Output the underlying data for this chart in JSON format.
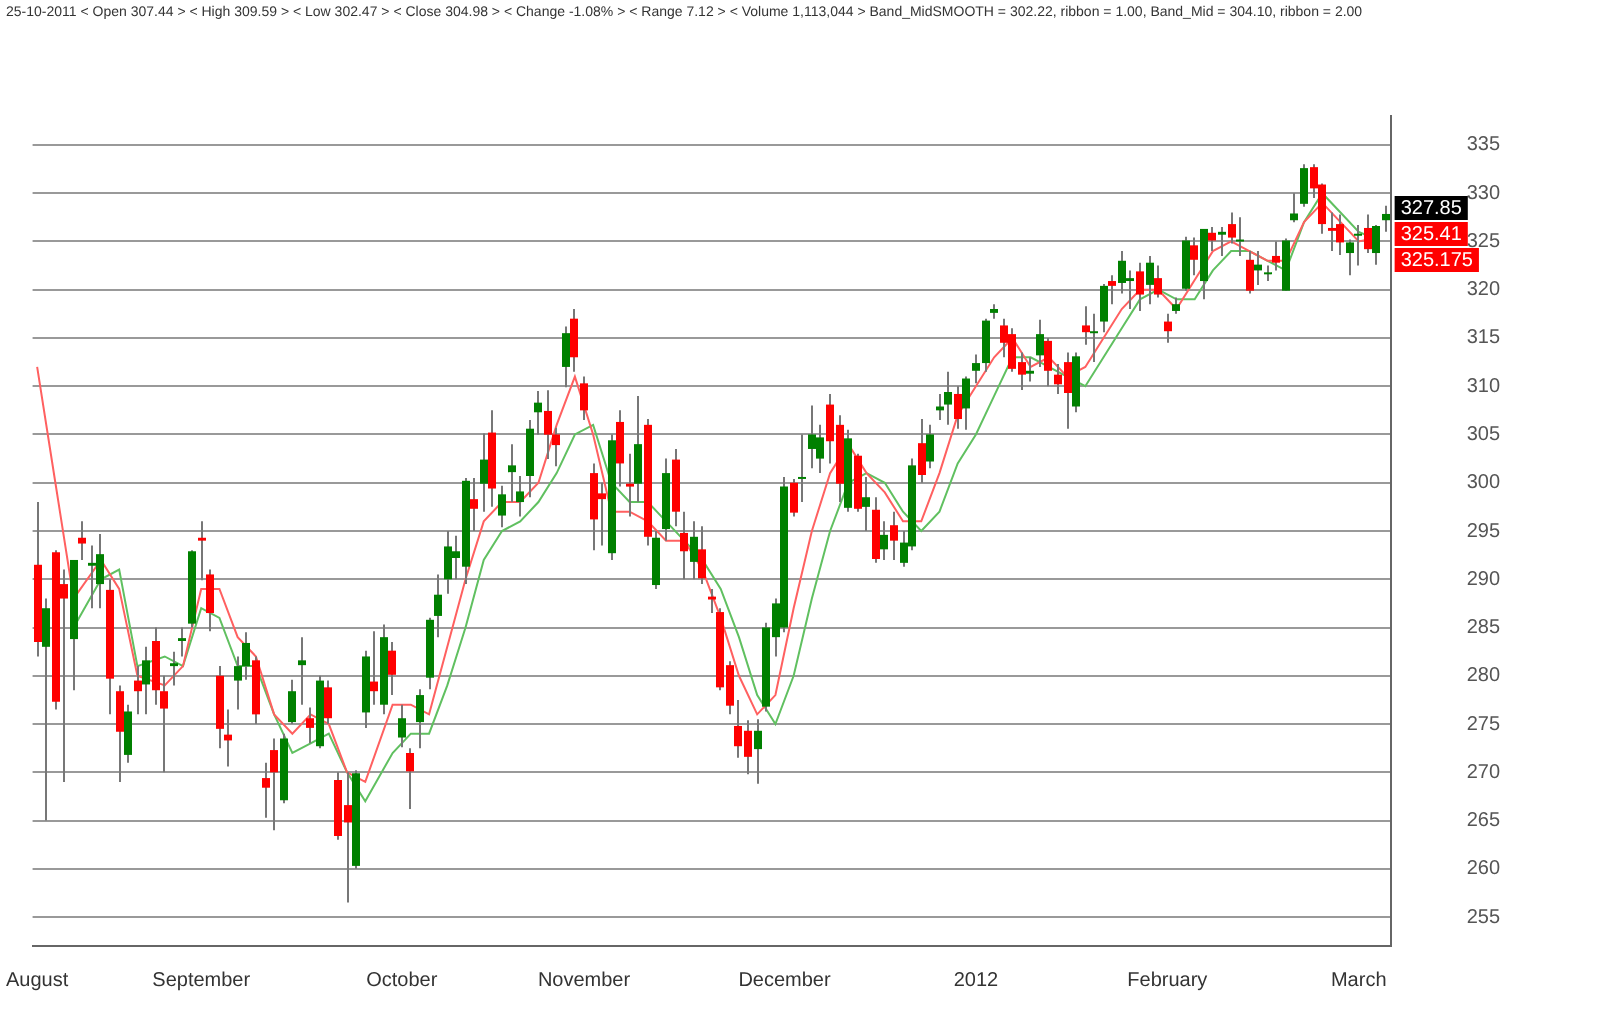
{
  "chart_data": {
    "type": "candlestick",
    "title": "25-10-2011 < Open 307.44 > < High 309.59 > < Low 302.47 > < Close 304.98 > < Change -1.08% > < Range 7.12 > < Volume 1,113,044 > Band_MidSMOOTH = 302.22, ribbon = 1.00, Band_Mid = 304.10, ribbon = 2.00",
    "categories": [
      "August",
      null,
      null,
      null,
      null,
      null,
      null,
      null,
      null,
      null,
      null,
      null,
      null,
      null,
      null,
      null,
      null,
      null,
      "September",
      null,
      null,
      null,
      null,
      null,
      null,
      null,
      null,
      null,
      null,
      null,
      null,
      null,
      null,
      null,
      null,
      null,
      null,
      null,
      null,
      null,
      "October",
      null,
      null,
      null,
      null,
      null,
      null,
      null,
      null,
      null,
      null,
      null,
      null,
      null,
      null,
      null,
      null,
      null,
      null,
      null,
      "November",
      null,
      null,
      null,
      null,
      null,
      null,
      null,
      null,
      null,
      null,
      null,
      null,
      null,
      null,
      null,
      null,
      null,
      null,
      null,
      null,
      null,
      "December",
      null,
      null,
      null,
      null,
      null,
      null,
      null,
      null,
      null,
      null,
      null,
      null,
      null,
      null,
      null,
      null,
      null,
      null,
      null,
      null,
      "2012",
      null,
      null,
      null,
      null,
      null,
      null,
      null,
      null,
      null,
      null,
      null,
      null,
      null,
      null,
      null,
      null,
      null,
      null,
      null,
      null,
      "February",
      null,
      null,
      null,
      null,
      null,
      null,
      null,
      null,
      null,
      null,
      null,
      null,
      null,
      null,
      null,
      null,
      null,
      null,
      null,
      null,
      "March",
      null,
      null,
      null
    ],
    "ohlc": [
      [
        291.5,
        298,
        282,
        283.5
      ],
      [
        283,
        288,
        265,
        287
      ],
      [
        292.8,
        293,
        276.5,
        277.3
      ],
      [
        289.5,
        291,
        269,
        288
      ],
      [
        283.8,
        292,
        278.5,
        292
      ],
      [
        294.3,
        296,
        292,
        293.7
      ],
      [
        291.4,
        293.5,
        287,
        291.7
      ],
      [
        289.5,
        294.7,
        287,
        292.6
      ],
      [
        288.9,
        290,
        276,
        279.7
      ],
      [
        278.4,
        279,
        269,
        274.2
      ],
      [
        271.8,
        277,
        271,
        276.3
      ],
      [
        279.5,
        281,
        276,
        278.4
      ],
      [
        279.1,
        283,
        276,
        281.6
      ],
      [
        283.6,
        285,
        277,
        278.5
      ],
      [
        278.4,
        280,
        270,
        276.6
      ],
      [
        281,
        282.5,
        279,
        281.3
      ],
      [
        283.6,
        285,
        282,
        283.9
      ],
      [
        285.4,
        293,
        285,
        292.9
      ],
      [
        294.3,
        296,
        289.9,
        294
      ],
      [
        290.5,
        291,
        284.6,
        286.5
      ],
      [
        280,
        281,
        272.5,
        274.5
      ],
      [
        273.9,
        276.5,
        270.6,
        273.3
      ],
      [
        279.5,
        282,
        276.5,
        281
      ],
      [
        281,
        284.5,
        279.6,
        283.4
      ],
      [
        281.6,
        282,
        275,
        276
      ],
      [
        269.4,
        271,
        265.3,
        268.4
      ],
      [
        272.3,
        273.5,
        264,
        270
      ],
      [
        267.1,
        274,
        266.8,
        273.5
      ],
      [
        275.2,
        279.6,
        275,
        278.4
      ],
      [
        281.1,
        284,
        277,
        281.6
      ],
      [
        275.6,
        276.7,
        273,
        274.6
      ],
      [
        272.7,
        280,
        272.5,
        279.5
      ],
      [
        278.8,
        279.5,
        275,
        275.6
      ],
      [
        269.2,
        270,
        263,
        263.4
      ],
      [
        266.6,
        270,
        256.5,
        264.8
      ],
      [
        260.3,
        270.2,
        260,
        269.9
      ],
      [
        276.2,
        282.6,
        274.6,
        282
      ],
      [
        279.4,
        284.6,
        277,
        278.4
      ],
      [
        277,
        285.3,
        276,
        284
      ],
      [
        282.6,
        283.5,
        278,
        280.1
      ],
      [
        273.6,
        277,
        272.6,
        275.6
      ],
      [
        272,
        272.5,
        266.2,
        270.1
      ],
      [
        275.2,
        278.6,
        272.5,
        278
      ],
      [
        279.8,
        286,
        278.6,
        285.8
      ],
      [
        286.2,
        290.5,
        284,
        288.4
      ],
      [
        290,
        295,
        288.5,
        293.4
      ],
      [
        292.2,
        294.5,
        290,
        292.9
      ],
      [
        291.3,
        300.5,
        289.5,
        300.2
      ],
      [
        298.3,
        300.5,
        295,
        297.3
      ],
      [
        299.9,
        305.1,
        297,
        302.4
      ],
      [
        305.2,
        307.5,
        297.5,
        299.4
      ],
      [
        296.6,
        299.7,
        295.4,
        298.8
      ],
      [
        301.1,
        304,
        298,
        301.8
      ],
      [
        298,
        300.7,
        296.5,
        299.1
      ],
      [
        300.7,
        306.5,
        298.5,
        305.6
      ],
      [
        307.3,
        309.5,
        305,
        308.3
      ],
      [
        307.44,
        309.59,
        302.47,
        304.98
      ],
      [
        305,
        305.7,
        301.7,
        303.9
      ],
      [
        312,
        316.2,
        309.9,
        315.5
      ],
      [
        317,
        318,
        311.5,
        313
      ],
      [
        310.3,
        311,
        306.5,
        307.5
      ],
      [
        301,
        302,
        293,
        296.2
      ],
      [
        298.9,
        300,
        293.5,
        298.3
      ],
      [
        292.7,
        305,
        292,
        304.4
      ],
      [
        306.3,
        307.5,
        299.6,
        302
      ],
      [
        299.9,
        303,
        296.5,
        299.6
      ],
      [
        299.9,
        309,
        298,
        304
      ],
      [
        306,
        306.6,
        293.5,
        294.4
      ],
      [
        289.4,
        295,
        289,
        294.3
      ],
      [
        295.2,
        302.5,
        294,
        301
      ],
      [
        302.4,
        303.5,
        295.5,
        297
      ],
      [
        294.8,
        297,
        290,
        292.9
      ],
      [
        291.8,
        296,
        290,
        294.4
      ],
      [
        293.1,
        295.5,
        289.5,
        290.1
      ],
      [
        288.2,
        289,
        286.5,
        287.9
      ],
      [
        286.6,
        287,
        278.5,
        278.8
      ],
      [
        281.1,
        281.5,
        276,
        276.9
      ],
      [
        274.8,
        277.5,
        271.5,
        272.7
      ],
      [
        274.3,
        275.4,
        269.8,
        271.6
      ],
      [
        272.4,
        275.5,
        268.8,
        274.3
      ],
      [
        276.8,
        285.5,
        276.3,
        285
      ],
      [
        284,
        288,
        282,
        287.5
      ],
      [
        285,
        300.6,
        284.5,
        299.6
      ],
      [
        300,
        300.4,
        296.5,
        296.9
      ],
      [
        300.4,
        305,
        298,
        300.6
      ],
      [
        303.5,
        308,
        301.5,
        305
      ],
      [
        302.5,
        306,
        301,
        304.7
      ],
      [
        308.1,
        309.2,
        302,
        304.3
      ],
      [
        306,
        307,
        298,
        299.9
      ],
      [
        297.4,
        305.5,
        297,
        304.6
      ],
      [
        302.8,
        303,
        297,
        297.3
      ],
      [
        297.5,
        300.6,
        295,
        298.5
      ],
      [
        297.2,
        298.5,
        291.7,
        292.1
      ],
      [
        293.1,
        296,
        292,
        294.6
      ],
      [
        295.6,
        297,
        292,
        294
      ],
      [
        291.7,
        295,
        291.3,
        293.8
      ],
      [
        293.4,
        302.5,
        293,
        301.8
      ],
      [
        304.1,
        306.6,
        300,
        300.8
      ],
      [
        302.2,
        306,
        301.5,
        305
      ],
      [
        307.5,
        309.2,
        306.5,
        307.9
      ],
      [
        308.1,
        311.5,
        306,
        309.4
      ],
      [
        309.2,
        310,
        305.6,
        306.6
      ],
      [
        307.7,
        311,
        305.5,
        310.8
      ],
      [
        311.6,
        313.3,
        310.3,
        312.4
      ],
      [
        312.4,
        317,
        311.5,
        316.8
      ],
      [
        317.6,
        318.5,
        317,
        318
      ],
      [
        316.3,
        317,
        313,
        314.5
      ],
      [
        315.4,
        316,
        311.5,
        311.8
      ],
      [
        312.5,
        313.5,
        309.6,
        311.2
      ],
      [
        311.3,
        313,
        310.5,
        311.6
      ],
      [
        313.2,
        316.9,
        312,
        315.4
      ],
      [
        314.7,
        315,
        310,
        311.6
      ],
      [
        311.2,
        312.3,
        309.2,
        310.2
      ],
      [
        312.5,
        313.5,
        305.6,
        309.3
      ],
      [
        307.9,
        313.5,
        307.3,
        313.1
      ],
      [
        316.3,
        318.3,
        314.3,
        315.6
      ],
      [
        315.5,
        317.5,
        312.5,
        315.7
      ],
      [
        316.7,
        320.6,
        315.6,
        320.4
      ],
      [
        320.9,
        321.5,
        318.5,
        320.4
      ],
      [
        320.7,
        324,
        319.6,
        323
      ],
      [
        320.9,
        322,
        318,
        321.2
      ],
      [
        321.9,
        322.8,
        317.8,
        319.5
      ],
      [
        320.5,
        323.5,
        318.5,
        322.8
      ],
      [
        321.2,
        322.5,
        319.2,
        319.5
      ],
      [
        316.7,
        317.5,
        314.5,
        315.7
      ],
      [
        317.8,
        319.2,
        317.5,
        318.5
      ],
      [
        320.1,
        325.5,
        319.9,
        325.1
      ],
      [
        324.6,
        325.4,
        321.5,
        323.1
      ],
      [
        320.9,
        326.3,
        319,
        326.3
      ],
      [
        325.9,
        326.5,
        324,
        325.1
      ],
      [
        325.7,
        326.5,
        323.5,
        326
      ],
      [
        326.8,
        328,
        324.8,
        325.4
      ],
      [
        325.1,
        327.5,
        323.5,
        325.2
      ],
      [
        323.1,
        324,
        319.6,
        319.9
      ],
      [
        322,
        324,
        320.5,
        322.6
      ],
      [
        321.6,
        322.5,
        320.9,
        321.8
      ],
      [
        323.5,
        325,
        322,
        322.8
      ],
      [
        319.9,
        325.3,
        319.9,
        325.1
      ],
      [
        327.2,
        330,
        327,
        327.9
      ],
      [
        328.9,
        333,
        328.6,
        332.6
      ],
      [
        332.7,
        333,
        329.5,
        330.5
      ],
      [
        330.9,
        331,
        325.8,
        326.8
      ],
      [
        326.4,
        328,
        324,
        326.1
      ],
      [
        326.8,
        327.8,
        323.6,
        324.9
      ],
      [
        323.8,
        325.2,
        321.5,
        324.9
      ],
      [
        325.7,
        326.7,
        322.5,
        325.8
      ],
      [
        326.4,
        327.8,
        323.8,
        324.2
      ],
      [
        323.8,
        326.7,
        322.6,
        326.6
      ],
      [
        327.2,
        328.7,
        326,
        327.85
      ]
    ],
    "series": [
      {
        "type": "line",
        "color": "#ff6060",
        "values": [
          312,
          null,
          300,
          null,
          288,
          null,
          null,
          292,
          null,
          289,
          null,
          280,
          null,
          null,
          279,
          null,
          281,
          null,
          289,
          null,
          289,
          null,
          284,
          null,
          282,
          null,
          276,
          null,
          274,
          null,
          276,
          null,
          275,
          null,
          270,
          null,
          269,
          null,
          null,
          277,
          null,
          277,
          null,
          276,
          null,
          283,
          null,
          290,
          null,
          296,
          null,
          298,
          null,
          298,
          null,
          300,
          null,
          306,
          null,
          311,
          null,
          305,
          null,
          297,
          null,
          297,
          null,
          296,
          null,
          294,
          null,
          294,
          null,
          291,
          null,
          286,
          null,
          280,
          null,
          276,
          null,
          278,
          null,
          287,
          null,
          295,
          null,
          301,
          null,
          304,
          null,
          301,
          null,
          299,
          null,
          296,
          null,
          296,
          null,
          301,
          null,
          307,
          null,
          310,
          null,
          313,
          null,
          315,
          null,
          312,
          null,
          313,
          null,
          311,
          null,
          312,
          null,
          315,
          null,
          318,
          null,
          320,
          null,
          320,
          null,
          318,
          null,
          321,
          null,
          324,
          null,
          325,
          null,
          324,
          null,
          323,
          null,
          323,
          null,
          327,
          null,
          329,
          null,
          327,
          null,
          325,
          null,
          325.4,
          null
        ]
      },
      {
        "type": "line",
        "color": "#60c060",
        "values": [
          null,
          null,
          null,
          null,
          285,
          null,
          null,
          290,
          null,
          291,
          null,
          281,
          null,
          null,
          282,
          null,
          281,
          null,
          287,
          null,
          286,
          null,
          281,
          null,
          281,
          null,
          276,
          null,
          272,
          null,
          273,
          null,
          274,
          null,
          270,
          null,
          267,
          null,
          null,
          272,
          null,
          274,
          null,
          274,
          null,
          279,
          null,
          285,
          null,
          292,
          null,
          295,
          null,
          296,
          null,
          298,
          null,
          301,
          null,
          305,
          null,
          306,
          null,
          300,
          null,
          298,
          null,
          298,
          null,
          296,
          null,
          294,
          null,
          292,
          null,
          289,
          null,
          284,
          null,
          278,
          null,
          275,
          null,
          280,
          null,
          288,
          null,
          295,
          null,
          300,
          null,
          301,
          null,
          300,
          null,
          297,
          null,
          295,
          null,
          297,
          null,
          302,
          null,
          305,
          null,
          309,
          null,
          313,
          null,
          313,
          null,
          312,
          null,
          311,
          null,
          310,
          null,
          313,
          null,
          316,
          null,
          319,
          null,
          320,
          null,
          319,
          null,
          319,
          null,
          322,
          null,
          324,
          null,
          324,
          null,
          323,
          null,
          322,
          null,
          327,
          null,
          330,
          null,
          328,
          null,
          326,
          null,
          325.2,
          null
        ]
      }
    ],
    "ylim": [
      252,
      338
    ],
    "yticks": [
      255,
      260,
      265,
      270,
      275,
      280,
      285,
      290,
      295,
      300,
      305,
      310,
      315,
      320,
      325,
      330,
      335
    ],
    "grid": "y",
    "legend": false,
    "annotations": [
      "327.85",
      "325.41",
      "325.175"
    ]
  }
}
